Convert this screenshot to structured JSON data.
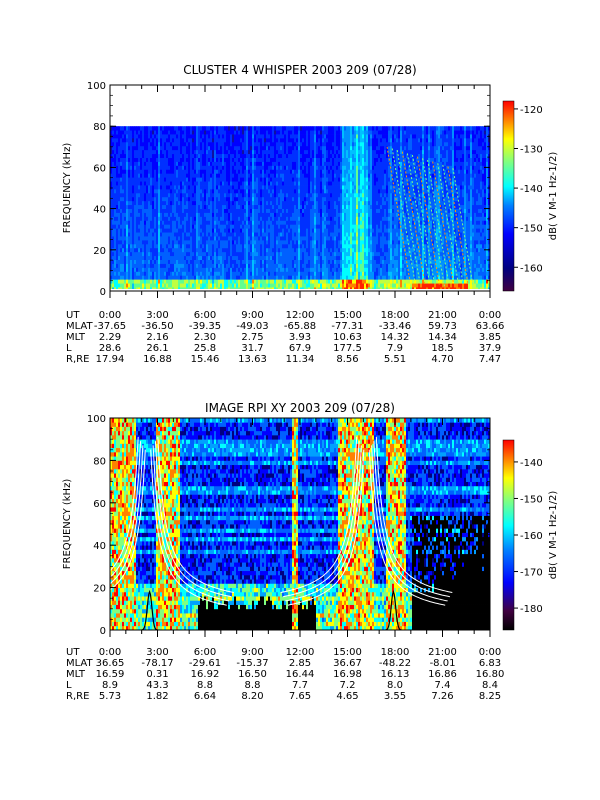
{
  "chart_data": [
    {
      "type": "heatmap",
      "title": "CLUSTER 4 WHISPER 2003 209 (07/28)",
      "ylabel": "FREQUENCY (kHz)",
      "ylim": [
        0,
        100
      ],
      "yticks": [
        "0",
        "20",
        "40",
        "60",
        "80",
        "100"
      ],
      "data_ceiling_khz": 80,
      "colorbar": {
        "label": "dB( V M-1 Hz-1/2)",
        "range": [
          -166,
          -118
        ],
        "ticks": [
          "-120",
          "-130",
          "-140",
          "-150",
          "-160"
        ],
        "tick_values": [
          -120,
          -130,
          -140,
          -150,
          -160
        ]
      },
      "ephemeris": {
        "rows": [
          {
            "label": "UT",
            "values": [
              "0:00",
              "3:00",
              "6:00",
              "9:00",
              "12:00",
              "15:00",
              "18:00",
              "21:00",
              "0:00"
            ]
          },
          {
            "label": "MLAT",
            "values": [
              "-37.65",
              "-36.50",
              "-39.35",
              "-49.03",
              "-65.88",
              "-77.31",
              "-33.46",
              "59.73",
              "63.66"
            ]
          },
          {
            "label": "MLT",
            "values": [
              "2.29",
              "2.16",
              "2.30",
              "2.75",
              "3.93",
              "10.63",
              "14.32",
              "14.34",
              "3.85"
            ]
          },
          {
            "label": "L",
            "values": [
              "28.6",
              "26.1",
              "25.8",
              "31.7",
              "67.9",
              "177.5",
              "7.9",
              "18.5",
              "37.9"
            ]
          },
          {
            "label": "R,RE",
            "values": [
              "17.94",
              "16.88",
              "15.46",
              "13.63",
              "11.34",
              "8.56",
              "5.51",
              "4.70",
              "7.47"
            ]
          }
        ]
      },
      "colors": [
        "#000080",
        "#0000ff",
        "#0080ff",
        "#00ffff",
        "#80ff80",
        "#ffff00",
        "#ff8000",
        "#ff0000"
      ]
    },
    {
      "type": "heatmap",
      "title": "IMAGE RPI XY 2003 209 (07/28)",
      "ylabel": "FREQUENCY (kHz)",
      "ylim": [
        0,
        100
      ],
      "yticks": [
        "0",
        "20",
        "40",
        "60",
        "80",
        "100"
      ],
      "colorbar": {
        "label": "dB( V M-1 Hz-1/2)",
        "range": [
          -186,
          -134
        ],
        "ticks": [
          "-140",
          "-150",
          "-160",
          "-170",
          "-180"
        ],
        "tick_values": [
          -140,
          -150,
          -160,
          -170,
          -180
        ]
      },
      "ephemeris": {
        "rows": [
          {
            "label": "UT",
            "values": [
              "0:00",
              "3:00",
              "6:00",
              "9:00",
              "12:00",
              "15:00",
              "18:00",
              "21:00",
              "0:00"
            ]
          },
          {
            "label": "MLAT",
            "values": [
              "36.65",
              "-78.17",
              "-29.61",
              "-15.37",
              "2.85",
              "36.67",
              "-48.22",
              "-8.01",
              "6.83"
            ]
          },
          {
            "label": "MLT",
            "values": [
              "16.59",
              "0.31",
              "16.92",
              "16.50",
              "16.44",
              "16.98",
              "16.13",
              "16.86",
              "16.80"
            ]
          },
          {
            "label": "L",
            "values": [
              "8.9",
              "43.3",
              "8.8",
              "8.8",
              "7.7",
              "7.2",
              "8.0",
              "7.4",
              "8.4"
            ]
          },
          {
            "label": "R,RE",
            "values": [
              "5.73",
              "1.82",
              "6.64",
              "8.20",
              "7.65",
              "4.65",
              "3.55",
              "7.26",
              "8.25"
            ]
          }
        ]
      },
      "colors": [
        "#000000",
        "#000080",
        "#0000ff",
        "#0080ff",
        "#00ffff",
        "#80ff80",
        "#ffff00",
        "#ff8000",
        "#ff0000"
      ]
    }
  ]
}
